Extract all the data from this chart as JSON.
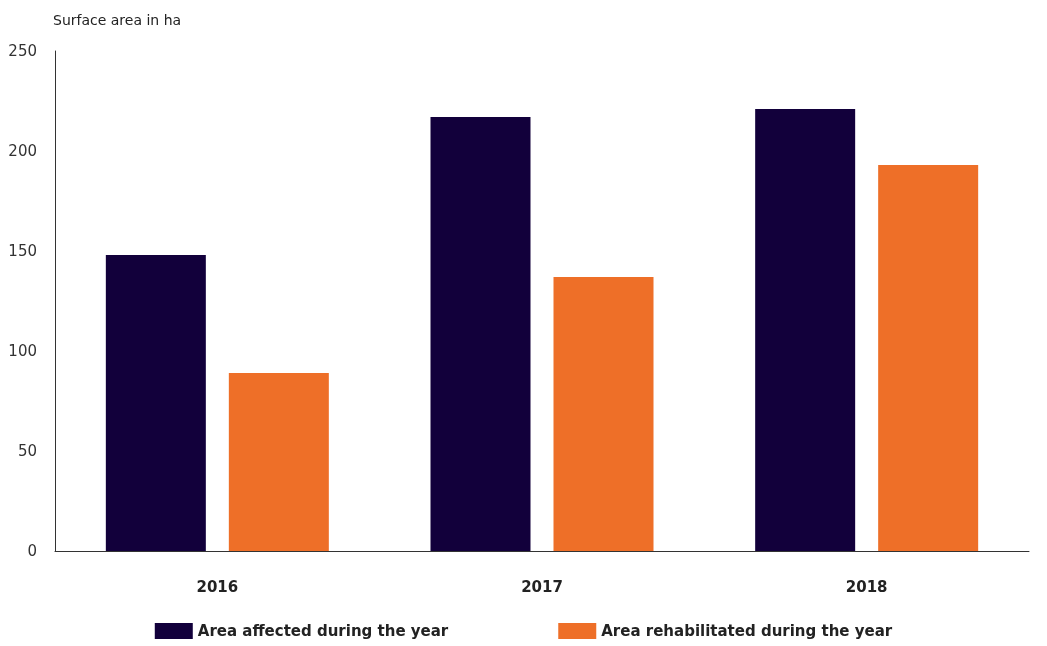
{
  "chart_data": {
    "type": "bar",
    "ylabel": "Surface area in ha",
    "categories": [
      "2016",
      "2017",
      "2018"
    ],
    "series": [
      {
        "name": "Area affected during the year",
        "color": "#12003b",
        "values": [
          148,
          217,
          221
        ]
      },
      {
        "name": "Area rehabilitated during the year",
        "color": "#ee6f28",
        "values": [
          89,
          137,
          193
        ]
      }
    ],
    "ylim": [
      0,
      250
    ],
    "yticks": [
      0,
      50,
      100,
      150,
      200,
      250
    ],
    "grid": false,
    "legend": "bottom"
  }
}
